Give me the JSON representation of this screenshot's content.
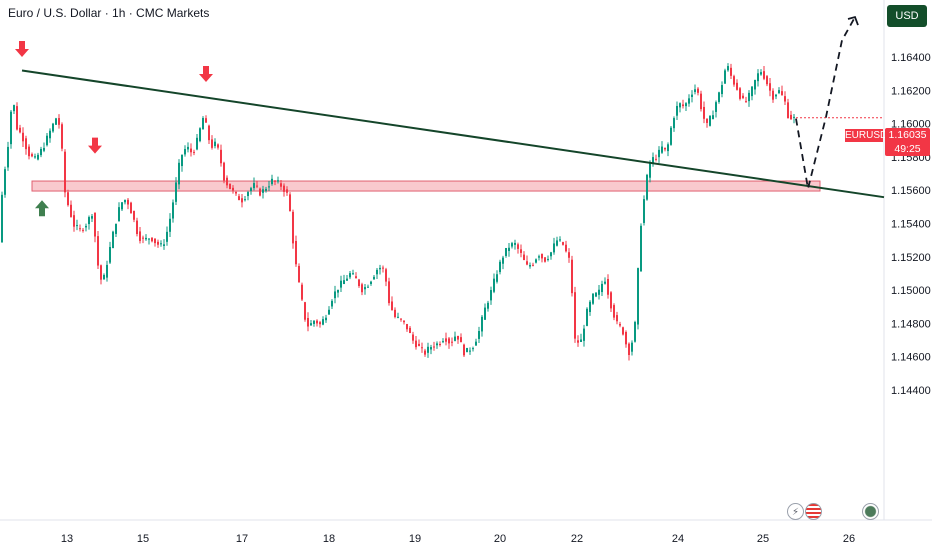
{
  "header": {
    "title": "Euro / U.S. Dollar · 1h · CMC Markets",
    "currency": "USD"
  },
  "price_tag": {
    "symbol": "EURUSD",
    "price": "1.16035",
    "countdown": "49:25"
  },
  "colors": {
    "up": "#089981",
    "down": "#f23645",
    "trendline": "#14452a",
    "zone_fill": "#f7b7bd",
    "zone_border": "#e06070",
    "arrow_down": "#f23645",
    "arrow_up": "#3f7f4f"
  },
  "events_row": {
    "icons": [
      "dividend-bolt-icon",
      "us-flag-icon",
      "earth-icon"
    ],
    "symbol_text": "⚡"
  },
  "chart_data": {
    "type": "candlestick",
    "symbol": "EURUSD",
    "timeframe": "1h",
    "source": "CMC Markets",
    "x_axis_labels": [
      "13",
      "15",
      "17",
      "18",
      "19",
      "20",
      "22",
      "24",
      "25",
      "26"
    ],
    "y_axis_labels": [
      "1.16400",
      "1.16200",
      "1.16000",
      "1.15800",
      "1.15600",
      "1.15400",
      "1.15200",
      "1.15000",
      "1.14800",
      "1.14600",
      "1.14400"
    ],
    "ylim": [
      1.1437,
      1.1667
    ],
    "price_path": [
      [
        0,
        1.1524
      ],
      [
        4,
        1.1562
      ],
      [
        10,
        1.159
      ],
      [
        14,
        1.1618
      ],
      [
        18,
        1.1598
      ],
      [
        24,
        1.1592
      ],
      [
        30,
        1.1582
      ],
      [
        36,
        1.1578
      ],
      [
        44,
        1.1585
      ],
      [
        52,
        1.1596
      ],
      [
        58,
        1.1604
      ],
      [
        62,
        1.1597
      ],
      [
        66,
        1.156
      ],
      [
        70,
        1.155
      ],
      [
        76,
        1.1538
      ],
      [
        82,
        1.1536
      ],
      [
        88,
        1.154
      ],
      [
        94,
        1.1547
      ],
      [
        100,
        1.1512
      ],
      [
        104,
        1.1503
      ],
      [
        110,
        1.1521
      ],
      [
        116,
        1.1538
      ],
      [
        122,
        1.1552
      ],
      [
        128,
        1.1555
      ],
      [
        134,
        1.1545
      ],
      [
        140,
        1.1532
      ],
      [
        146,
        1.153
      ],
      [
        152,
        1.1532
      ],
      [
        158,
        1.1528
      ],
      [
        164,
        1.1526
      ],
      [
        170,
        1.1538
      ],
      [
        176,
        1.1558
      ],
      [
        182,
        1.158
      ],
      [
        188,
        1.1586
      ],
      [
        194,
        1.1582
      ],
      [
        200,
        1.1592
      ],
      [
        204,
        1.1604
      ],
      [
        208,
        1.1598
      ],
      [
        212,
        1.1586
      ],
      [
        218,
        1.1588
      ],
      [
        222,
        1.1578
      ],
      [
        226,
        1.1566
      ],
      [
        232,
        1.1561
      ],
      [
        238,
        1.1556
      ],
      [
        244,
        1.1554
      ],
      [
        250,
        1.156
      ],
      [
        256,
        1.1563
      ],
      [
        262,
        1.1558
      ],
      [
        268,
        1.1562
      ],
      [
        274,
        1.1566
      ],
      [
        280,
        1.1564
      ],
      [
        284,
        1.1562
      ],
      [
        290,
        1.1556
      ],
      [
        294,
        1.1532
      ],
      [
        298,
        1.1512
      ],
      [
        302,
        1.1498
      ],
      [
        306,
        1.1484
      ],
      [
        310,
        1.1478
      ],
      [
        316,
        1.1482
      ],
      [
        322,
        1.1479
      ],
      [
        328,
        1.1486
      ],
      [
        334,
        1.1496
      ],
      [
        340,
        1.1502
      ],
      [
        346,
        1.1506
      ],
      [
        352,
        1.151
      ],
      [
        358,
        1.1506
      ],
      [
        364,
        1.15
      ],
      [
        370,
        1.1504
      ],
      [
        376,
        1.151
      ],
      [
        380,
        1.1514
      ],
      [
        386,
        1.1512
      ],
      [
        390,
        1.1494
      ],
      [
        396,
        1.1484
      ],
      [
        402,
        1.1482
      ],
      [
        408,
        1.1478
      ],
      [
        414,
        1.147
      ],
      [
        420,
        1.1466
      ],
      [
        426,
        1.1462
      ],
      [
        432,
        1.1466
      ],
      [
        440,
        1.1468
      ],
      [
        446,
        1.1472
      ],
      [
        452,
        1.1468
      ],
      [
        458,
        1.1474
      ],
      [
        466,
        1.1462
      ],
      [
        474,
        1.1466
      ],
      [
        480,
        1.1474
      ],
      [
        486,
        1.1488
      ],
      [
        492,
        1.1498
      ],
      [
        498,
        1.151
      ],
      [
        504,
        1.152
      ],
      [
        510,
        1.1526
      ],
      [
        516,
        1.1528
      ],
      [
        522,
        1.1522
      ],
      [
        528,
        1.1514
      ],
      [
        534,
        1.1516
      ],
      [
        540,
        1.1522
      ],
      [
        546,
        1.1518
      ],
      [
        552,
        1.1522
      ],
      [
        558,
        1.153
      ],
      [
        564,
        1.1528
      ],
      [
        568,
        1.1522
      ],
      [
        572,
        1.1516
      ],
      [
        576,
        1.147
      ],
      [
        582,
        1.1468
      ],
      [
        588,
        1.1486
      ],
      [
        594,
        1.1496
      ],
      [
        600,
        1.1498
      ],
      [
        606,
        1.1508
      ],
      [
        612,
        1.1492
      ],
      [
        618,
        1.148
      ],
      [
        624,
        1.1476
      ],
      [
        630,
        1.1462
      ],
      [
        636,
        1.1474
      ],
      [
        642,
        1.1538
      ],
      [
        648,
        1.1566
      ],
      [
        652,
        1.1578
      ],
      [
        658,
        1.158
      ],
      [
        664,
        1.1586
      ],
      [
        668,
        1.1582
      ],
      [
        672,
        1.1596
      ],
      [
        676,
        1.1606
      ],
      [
        680,
        1.1612
      ],
      [
        686,
        1.161
      ],
      [
        692,
        1.1618
      ],
      [
        698,
        1.1622
      ],
      [
        704,
        1.1606
      ],
      [
        708,
        1.1598
      ],
      [
        714,
        1.1606
      ],
      [
        718,
        1.1614
      ],
      [
        722,
        1.162
      ],
      [
        728,
        1.1636
      ],
      [
        734,
        1.1626
      ],
      [
        738,
        1.1622
      ],
      [
        742,
        1.1616
      ],
      [
        746,
        1.1612
      ],
      [
        752,
        1.1618
      ],
      [
        758,
        1.1628
      ],
      [
        762,
        1.1632
      ],
      [
        766,
        1.1628
      ],
      [
        770,
        1.1622
      ],
      [
        774,
        1.1616
      ],
      [
        780,
        1.162
      ],
      [
        786,
        1.1614
      ],
      [
        790,
        1.1604
      ],
      [
        796,
        1.1603
      ]
    ],
    "trendline": {
      "from": [
        22,
        1.16319
      ],
      "to": [
        884,
        1.15558
      ]
    },
    "support_zone": {
      "x_range": [
        32,
        820
      ],
      "price_range": [
        1.15595,
        1.15655
      ]
    },
    "forecast_path": [
      [
        796,
        1.1603
      ],
      [
        808,
        1.1561
      ],
      [
        826,
        1.1604
      ],
      [
        842,
        1.165
      ],
      [
        855,
        1.1664
      ]
    ],
    "arrows": [
      {
        "dir": "down",
        "x": 22,
        "price": 1.164
      },
      {
        "dir": "down",
        "x": 206,
        "price": 1.1625
      },
      {
        "dir": "down",
        "x": 95,
        "price": 1.1582
      },
      {
        "dir": "up",
        "x": 42,
        "price": 1.1554
      }
    ]
  }
}
